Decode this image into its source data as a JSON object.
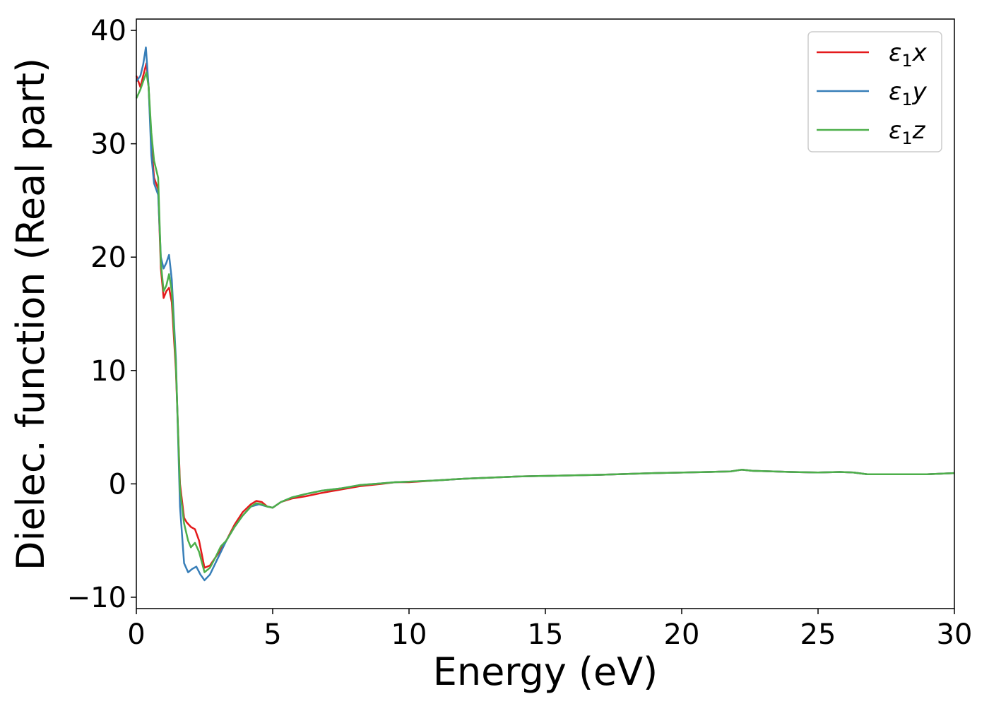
{
  "chart_data": {
    "type": "line",
    "title": "",
    "xlabel": "Energy (eV)",
    "ylabel": "Dielec. function (Real part)",
    "xlim": [
      0,
      30
    ],
    "ylim": [
      -11,
      41
    ],
    "xticks": [
      0,
      5,
      10,
      15,
      20,
      25,
      30
    ],
    "xtick_labels": [
      "0",
      "5",
      "10",
      "15",
      "20",
      "25",
      "30"
    ],
    "yticks": [
      -10,
      0,
      10,
      20,
      30,
      40
    ],
    "ytick_labels": [
      "−10",
      "0",
      "10",
      "20",
      "30",
      "40"
    ],
    "grid": false,
    "legend": {
      "position": "upper right",
      "entries": [
        {
          "label_main": "ε",
          "label_sub": "1",
          "label_suffix": "x"
        },
        {
          "label_main": "ε",
          "label_sub": "1",
          "label_suffix": "y"
        },
        {
          "label_main": "ε",
          "label_sub": "1",
          "label_suffix": "z"
        }
      ]
    },
    "series": [
      {
        "name": "ε1x",
        "color": "#e41a1c",
        "points": [
          [
            0,
            36
          ],
          [
            0.15,
            35
          ],
          [
            0.25,
            36
          ],
          [
            0.37,
            37.1
          ],
          [
            0.45,
            35
          ],
          [
            0.55,
            30
          ],
          [
            0.65,
            27
          ],
          [
            0.8,
            26
          ],
          [
            0.9,
            19
          ],
          [
            1.0,
            16.4
          ],
          [
            1.1,
            17
          ],
          [
            1.2,
            17.3
          ],
          [
            1.3,
            16
          ],
          [
            1.45,
            10
          ],
          [
            1.6,
            0
          ],
          [
            1.75,
            -3
          ],
          [
            1.85,
            -3.4
          ],
          [
            2.0,
            -3.8
          ],
          [
            2.15,
            -4
          ],
          [
            2.3,
            -5
          ],
          [
            2.5,
            -7.4
          ],
          [
            2.7,
            -7.2
          ],
          [
            2.9,
            -6.5
          ],
          [
            3.1,
            -5.8
          ],
          [
            3.3,
            -5
          ],
          [
            3.6,
            -3.6
          ],
          [
            3.9,
            -2.5
          ],
          [
            4.2,
            -1.8
          ],
          [
            4.4,
            -1.5
          ],
          [
            4.6,
            -1.6
          ],
          [
            4.8,
            -2
          ],
          [
            5.0,
            -2.1
          ],
          [
            5.3,
            -1.6
          ],
          [
            5.7,
            -1.3
          ],
          [
            6.2,
            -1.1
          ],
          [
            6.8,
            -0.8
          ],
          [
            7.5,
            -0.5
          ],
          [
            8.2,
            -0.2
          ],
          [
            9,
            0
          ],
          [
            9.5,
            0.15
          ],
          [
            10,
            0.15
          ],
          [
            11,
            0.3
          ],
          [
            12,
            0.45
          ],
          [
            13,
            0.55
          ],
          [
            14,
            0.65
          ],
          [
            15,
            0.7
          ],
          [
            17,
            0.8
          ],
          [
            19,
            0.95
          ],
          [
            21,
            1.05
          ],
          [
            21.8,
            1.1
          ],
          [
            22.2,
            1.25
          ],
          [
            22.6,
            1.15
          ],
          [
            24,
            1.05
          ],
          [
            25,
            1.0
          ],
          [
            25.8,
            1.05
          ],
          [
            26.3,
            1.0
          ],
          [
            26.8,
            0.85
          ],
          [
            28,
            0.85
          ],
          [
            29,
            0.85
          ],
          [
            30,
            0.95
          ]
        ]
      },
      {
        "name": "ε1y",
        "color": "#377eb8",
        "points": [
          [
            0,
            35.5
          ],
          [
            0.15,
            36
          ],
          [
            0.25,
            37
          ],
          [
            0.35,
            38.5
          ],
          [
            0.45,
            35
          ],
          [
            0.55,
            29
          ],
          [
            0.65,
            26.5
          ],
          [
            0.8,
            25.5
          ],
          [
            0.9,
            20
          ],
          [
            1.0,
            19
          ],
          [
            1.1,
            19.5
          ],
          [
            1.2,
            20.2
          ],
          [
            1.3,
            18
          ],
          [
            1.45,
            11
          ],
          [
            1.6,
            -2
          ],
          [
            1.75,
            -7
          ],
          [
            1.9,
            -7.8
          ],
          [
            2.05,
            -7.5
          ],
          [
            2.2,
            -7.3
          ],
          [
            2.35,
            -8
          ],
          [
            2.5,
            -8.5
          ],
          [
            2.7,
            -8
          ],
          [
            2.9,
            -7
          ],
          [
            3.1,
            -6
          ],
          [
            3.3,
            -5
          ],
          [
            3.6,
            -3.8
          ],
          [
            3.9,
            -2.8
          ],
          [
            4.2,
            -2
          ],
          [
            4.5,
            -1.8
          ],
          [
            4.8,
            -2
          ],
          [
            5.0,
            -2.1
          ],
          [
            5.3,
            -1.6
          ],
          [
            5.7,
            -1.2
          ],
          [
            6.2,
            -0.9
          ],
          [
            6.8,
            -0.6
          ],
          [
            7.5,
            -0.4
          ],
          [
            8.2,
            -0.1
          ],
          [
            9,
            0.05
          ],
          [
            9.5,
            0.15
          ],
          [
            10,
            0.2
          ],
          [
            11,
            0.3
          ],
          [
            12,
            0.45
          ],
          [
            13,
            0.55
          ],
          [
            14,
            0.65
          ],
          [
            15,
            0.7
          ],
          [
            17,
            0.8
          ],
          [
            19,
            0.95
          ],
          [
            21,
            1.05
          ],
          [
            21.8,
            1.1
          ],
          [
            22.2,
            1.25
          ],
          [
            22.6,
            1.15
          ],
          [
            24,
            1.05
          ],
          [
            25,
            1.0
          ],
          [
            25.8,
            1.05
          ],
          [
            26.3,
            1.0
          ],
          [
            26.8,
            0.85
          ],
          [
            28,
            0.85
          ],
          [
            29,
            0.85
          ],
          [
            30,
            0.95
          ]
        ]
      },
      {
        "name": "ε1z",
        "color": "#4daf4a",
        "points": [
          [
            0,
            34
          ],
          [
            0.15,
            34.8
          ],
          [
            0.25,
            35.5
          ],
          [
            0.37,
            36.3
          ],
          [
            0.45,
            35
          ],
          [
            0.55,
            31
          ],
          [
            0.65,
            28.5
          ],
          [
            0.8,
            27
          ],
          [
            0.9,
            19.5
          ],
          [
            1.0,
            17
          ],
          [
            1.1,
            17.5
          ],
          [
            1.2,
            18.5
          ],
          [
            1.3,
            17
          ],
          [
            1.45,
            10.5
          ],
          [
            1.6,
            -0.5
          ],
          [
            1.75,
            -3.5
          ],
          [
            1.9,
            -5
          ],
          [
            2.0,
            -5.6
          ],
          [
            2.15,
            -5.2
          ],
          [
            2.3,
            -6
          ],
          [
            2.5,
            -7.8
          ],
          [
            2.7,
            -7.4
          ],
          [
            2.9,
            -6.5
          ],
          [
            3.1,
            -5.5
          ],
          [
            3.3,
            -5
          ],
          [
            3.6,
            -3.8
          ],
          [
            3.9,
            -2.8
          ],
          [
            4.2,
            -2
          ],
          [
            4.4,
            -1.7
          ],
          [
            4.6,
            -1.8
          ],
          [
            4.8,
            -2
          ],
          [
            5.0,
            -2.1
          ],
          [
            5.3,
            -1.6
          ],
          [
            5.7,
            -1.2
          ],
          [
            6.2,
            -0.9
          ],
          [
            6.8,
            -0.6
          ],
          [
            7.5,
            -0.4
          ],
          [
            8.2,
            -0.1
          ],
          [
            9,
            0.05
          ],
          [
            9.5,
            0.15
          ],
          [
            10,
            0.2
          ],
          [
            11,
            0.3
          ],
          [
            12,
            0.45
          ],
          [
            13,
            0.55
          ],
          [
            14,
            0.65
          ],
          [
            15,
            0.7
          ],
          [
            17,
            0.8
          ],
          [
            19,
            0.95
          ],
          [
            21,
            1.05
          ],
          [
            21.8,
            1.1
          ],
          [
            22.2,
            1.25
          ],
          [
            22.6,
            1.15
          ],
          [
            24,
            1.05
          ],
          [
            25,
            1.0
          ],
          [
            25.8,
            1.05
          ],
          [
            26.3,
            1.0
          ],
          [
            26.8,
            0.85
          ],
          [
            28,
            0.85
          ],
          [
            29,
            0.85
          ],
          [
            30,
            0.95
          ]
        ]
      }
    ]
  }
}
